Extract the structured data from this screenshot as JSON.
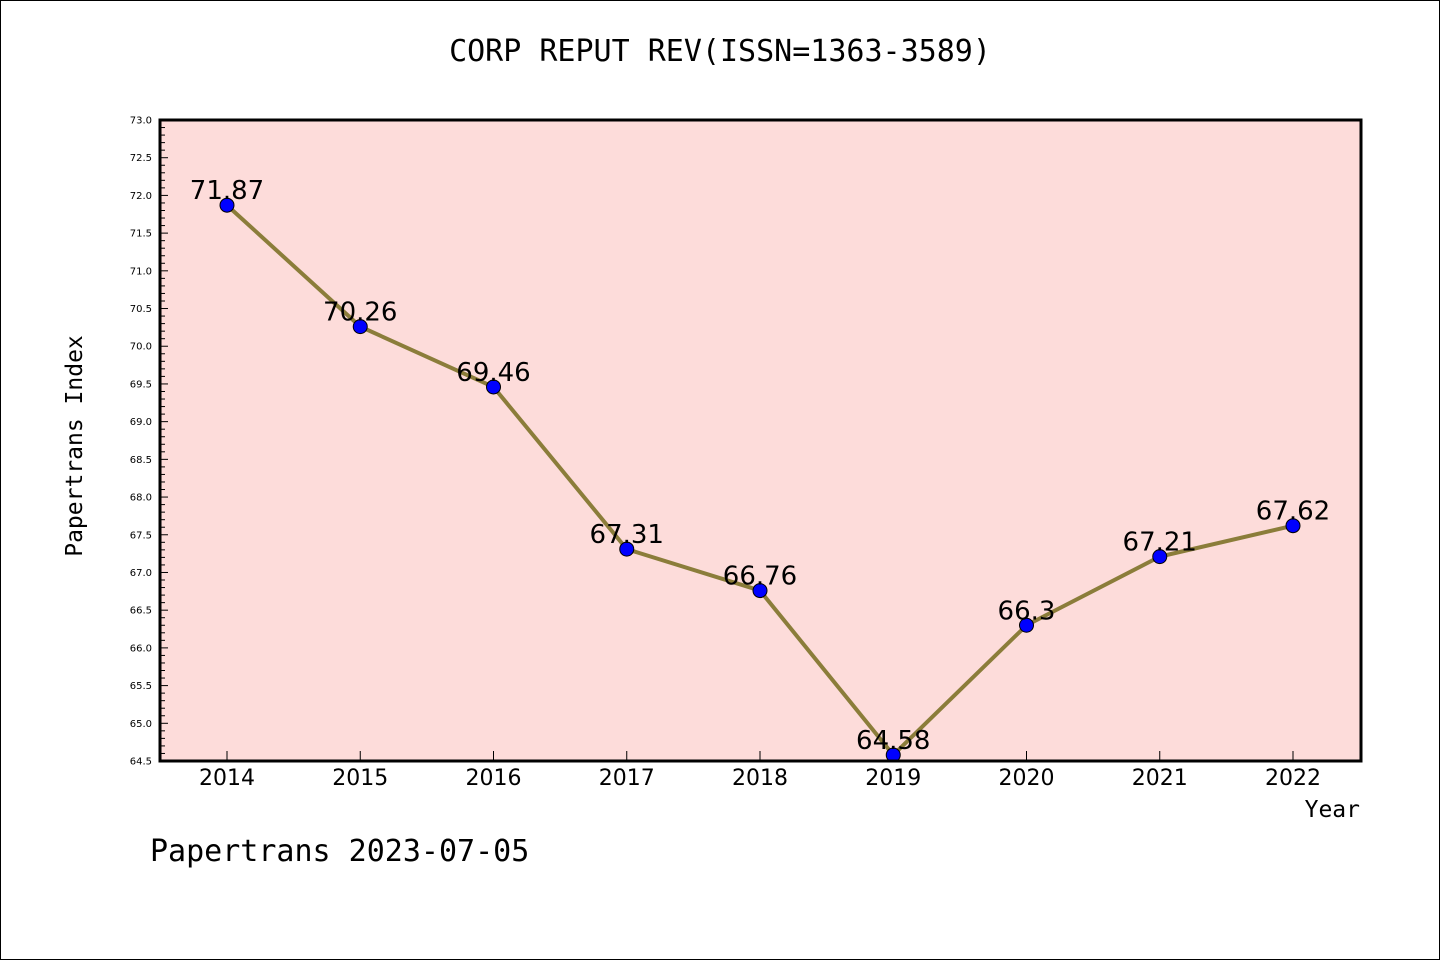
{
  "chart_data": {
    "type": "line",
    "title": "CORP REPUT REV(ISSN=1363-3589)",
    "xlabel": "Year",
    "ylabel": "Papertrans Index",
    "x": [
      "2014",
      "2015",
      "2016",
      "2017",
      "2018",
      "2019",
      "2020",
      "2021",
      "2022"
    ],
    "series": [
      {
        "values": [
          71.87,
          70.26,
          69.46,
          67.31,
          66.76,
          64.58,
          66.3,
          67.21,
          67.62
        ],
        "labels": [
          "71.87",
          "70.26",
          "69.46",
          "67.31",
          "66.76",
          "64.58",
          "66.3",
          "67.21",
          "67.62"
        ],
        "line_color": "#8B7D3A",
        "marker_color": "#0000FF"
      }
    ],
    "ylim": [
      64.5,
      73.0
    ],
    "yticks": [
      "64.5",
      "65.0",
      "65.5",
      "66.0",
      "66.5",
      "67.0",
      "67.5",
      "68.0",
      "68.5",
      "69.0",
      "69.5",
      "70.0",
      "70.5",
      "71.0",
      "71.5",
      "72.0",
      "72.5",
      "73.0"
    ],
    "plot_background": "#FDDCDA",
    "grid": false,
    "legend": "none"
  },
  "footer": {
    "text": "Papertrans 2023-07-05"
  }
}
